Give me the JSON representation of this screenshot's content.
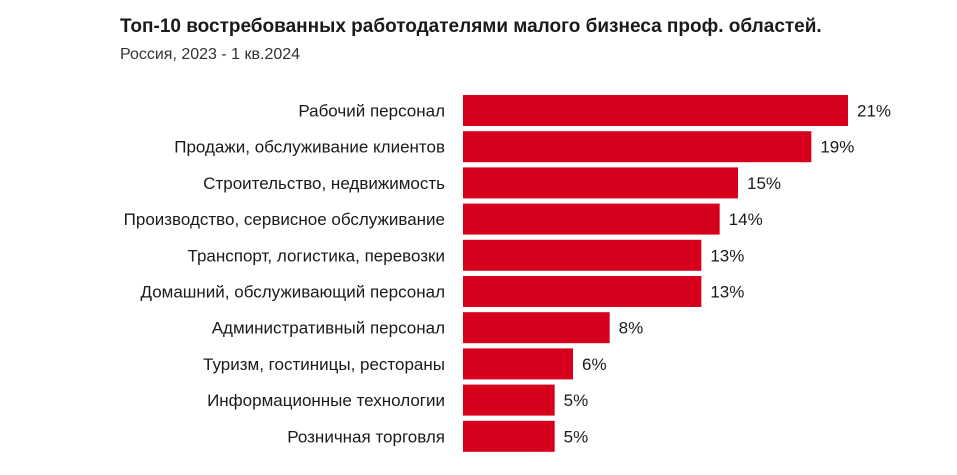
{
  "chart_data": {
    "type": "bar",
    "orientation": "horizontal",
    "title": "Топ-10 востребованных работодателями малого бизнеса проф. областей.",
    "subtitle": "Россия, 2023 - 1 кв.2024",
    "categories": [
      "Рабочий персонал",
      "Продажи, обслуживание клиентов",
      "Строительство, недвижимость",
      "Производство, сервисное обслуживание",
      "Транспорт, логистика, перевозки",
      "Домашний, обслуживающий персонал",
      "Административный персонал",
      "Туризм, гостиницы, рестораны",
      "Информационные технологии",
      "Розничная торговля"
    ],
    "values": [
      21,
      19,
      15,
      14,
      13,
      13,
      8,
      6,
      5,
      5
    ],
    "value_labels": [
      "21%",
      "19%",
      "15%",
      "14%",
      "13%",
      "13%",
      "8%",
      "6%",
      "5%",
      "5%"
    ],
    "bar_color": "#d6001c",
    "xlabel": "",
    "ylabel": "",
    "xlim": [
      0,
      21
    ]
  }
}
